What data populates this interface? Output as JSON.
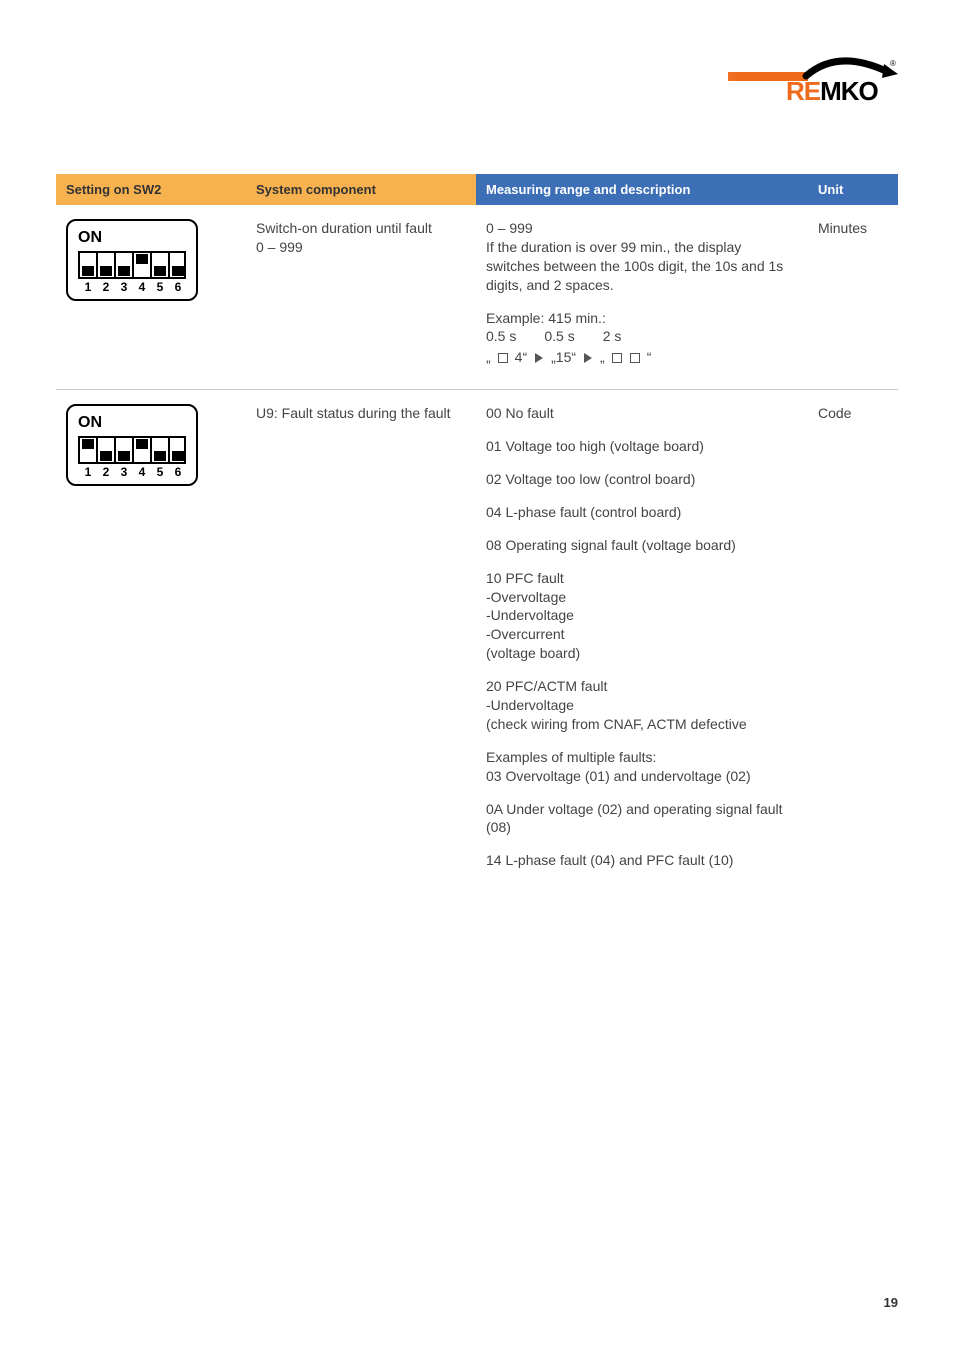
{
  "brand": {
    "part1": "RE",
    "part2": "MKO",
    "reg": "®"
  },
  "page_number": "19",
  "colors": {
    "header_orange": "#f7b24f",
    "header_blue": "#3d6fb6",
    "rule": "#c9c9c9",
    "text": "#444444",
    "accent": "#ef6a1a"
  },
  "headers": {
    "sw2": "Setting on SW2",
    "component": "System component",
    "range": "Measuring range and description",
    "unit": "Unit"
  },
  "rows": [
    {
      "dip": {
        "label_on": "ON",
        "positions": [
          "down",
          "down",
          "down",
          "up",
          "down",
          "down"
        ],
        "numbers": [
          "1",
          "2",
          "3",
          "4",
          "5",
          "6"
        ]
      },
      "component": "Switch-on duration until fault\n0 – 999",
      "desc_block": {
        "p1": "0 – 999\nIf the duration is over 99 min., the display switches between the 100s digit, the 10s and 1s digits, and 2 spaces.",
        "p2": "Example: 415 min.:",
        "timing": {
          "a": "0.5 s",
          "b": "0.5 s",
          "c": "2 s"
        },
        "seq": {
          "s1a": "„",
          "s1b": " 4“",
          "s2a": "„15“",
          "s3a": "„",
          "s3b": "“"
        }
      },
      "unit": "Minutes"
    },
    {
      "dip": {
        "label_on": "ON",
        "positions": [
          "up",
          "down",
          "down",
          "up",
          "down",
          "down"
        ],
        "numbers": [
          "1",
          "2",
          "3",
          "4",
          "5",
          "6"
        ]
      },
      "component": "U9: Fault status during the fault",
      "fault_codes": [
        "00  No fault",
        "01  Voltage too high (voltage board)",
        "02  Voltage too low (control board)",
        "04  L-phase fault (control board)",
        "08  Operating signal fault (voltage board)",
        "10  PFC fault\n-Overvoltage\n-Undervoltage\n-Overcurrent\n(voltage board)",
        "20  PFC/ACTM fault\n-Undervoltage\n(check wiring from CNAF, ACTM defective",
        "Examples of multiple faults:\n03 Overvoltage (01) and undervoltage (02)",
        "0A Under voltage (02) and operating signal fault (08)",
        "14 L-phase fault (04) and PFC fault (10)"
      ],
      "unit": "Code"
    }
  ]
}
